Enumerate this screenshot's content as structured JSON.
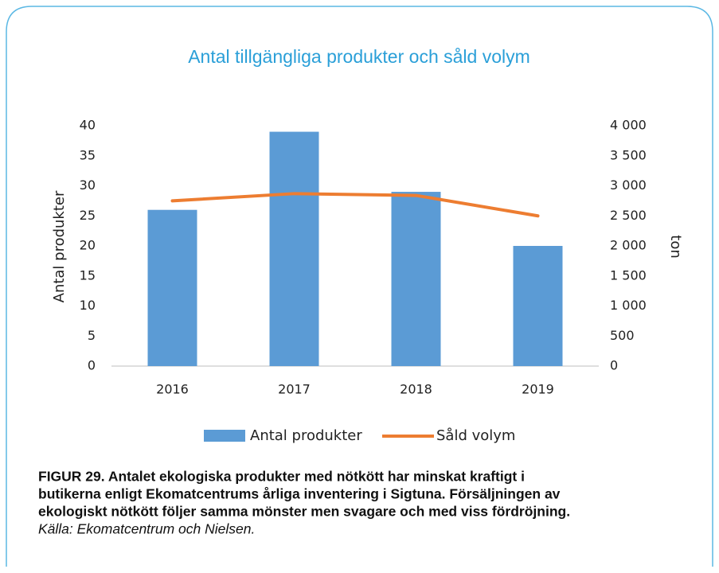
{
  "chart_data": {
    "type": "bar-line",
    "title": "Antal tillgängliga produkter och såld volym",
    "categories": [
      "2016",
      "2017",
      "2018",
      "2019"
    ],
    "series": [
      {
        "name": "Antal produkter",
        "color": "#5b9bd5",
        "type": "bar",
        "values": [
          26,
          39,
          29,
          20
        ]
      },
      {
        "name": "Såld volym",
        "color": "#ed7d31",
        "type": "line",
        "axis": "y2",
        "values": [
          2750,
          2870,
          2840,
          2500
        ]
      }
    ],
    "ylabel": "Antal produkter",
    "y2label": "ton",
    "ylim": [
      0,
      40
    ],
    "yticks": [
      0,
      5,
      10,
      15,
      20,
      25,
      30,
      35,
      40
    ],
    "y2lim": [
      0,
      4000
    ],
    "y2ticks": [
      0,
      500,
      {
        "value": 1000,
        "label": "1 000"
      },
      {
        "value": 1500,
        "label": "1 500"
      },
      {
        "value": 2000,
        "label": "2 000"
      },
      {
        "value": 2500,
        "label": "2 500"
      },
      {
        "value": 3000,
        "label": "3 000"
      },
      {
        "value": 3500,
        "label": "3 500"
      },
      {
        "value": 4000,
        "label": "4 000"
      }
    ],
    "grid": false,
    "legend": "bottom",
    "caption": [
      "FIGUR 29. Antalet ekologiska produkter med nötkött har minskat kraftigt i",
      "butikerna enligt Ekomatcentrums årliga inventering i Sigtuna. Försäljningen av",
      "ekologiskt nötkött följer samma mönster men svagare och med viss fördröjning."
    ],
    "source": "Källa: Ekomatcentrum och Nielsen."
  }
}
